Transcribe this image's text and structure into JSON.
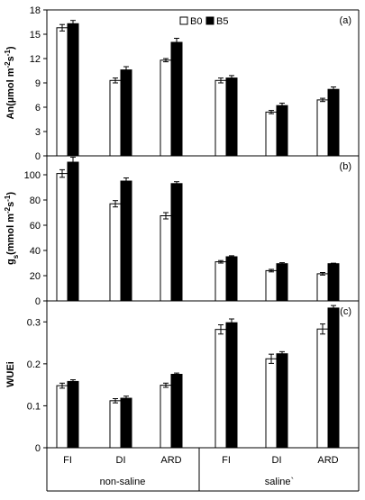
{
  "chart_data": [
    {
      "panel": "(a)",
      "type": "bar",
      "ylabel": "An(µmol m⁻²s⁻¹)",
      "ylim": [
        0,
        18
      ],
      "yticks": [
        "0",
        "3",
        "6",
        "9",
        "12",
        "15",
        "18"
      ],
      "categories": [
        "FI",
        "DI",
        "ARD",
        "FI",
        "DI",
        "ARD"
      ],
      "series": [
        {
          "name": "B0",
          "color": "#ffffff",
          "values": [
            15.8,
            9.3,
            11.8,
            9.3,
            5.4,
            6.9
          ],
          "errors": [
            0.4,
            0.3,
            0.2,
            0.3,
            0.2,
            0.2
          ]
        },
        {
          "name": "B5",
          "color": "#000000",
          "values": [
            16.3,
            10.6,
            14.0,
            9.6,
            6.2,
            8.2
          ],
          "errors": [
            0.4,
            0.4,
            0.5,
            0.3,
            0.3,
            0.3
          ]
        }
      ]
    },
    {
      "panel": "(b)",
      "type": "bar",
      "ylabel": "gs(mmol m⁻²s⁻¹)",
      "ylim": [
        0,
        115
      ],
      "yticks": [
        "0",
        "20",
        "40",
        "60",
        "80",
        "100"
      ],
      "categories": [
        "FI",
        "DI",
        "ARD",
        "FI",
        "DI",
        "ARD"
      ],
      "series": [
        {
          "name": "B0",
          "color": "#ffffff",
          "values": [
            101,
            77,
            67.5,
            31,
            24,
            21.5
          ],
          "errors": [
            3,
            2.5,
            2.5,
            1,
            1,
            1
          ]
        },
        {
          "name": "B5",
          "color": "#000000",
          "values": [
            110,
            95,
            93,
            35,
            29.5,
            29.5
          ],
          "errors": [
            4,
            2.5,
            1.5,
            0.8,
            0.8,
            0.4
          ]
        }
      ]
    },
    {
      "panel": "(c)",
      "type": "bar",
      "ylabel": "WUEi",
      "ylim": [
        0,
        0.35
      ],
      "yticks": [
        "0",
        "0.1",
        "0.2",
        "0.3"
      ],
      "categories": [
        "FI",
        "DI",
        "ARD",
        "FI",
        "DI",
        "ARD"
      ],
      "series": [
        {
          "name": "B0",
          "color": "#ffffff",
          "values": [
            0.148,
            0.112,
            0.149,
            0.282,
            0.212,
            0.283
          ],
          "errors": [
            0.006,
            0.005,
            0.005,
            0.011,
            0.011,
            0.012
          ]
        },
        {
          "name": "B5",
          "color": "#000000",
          "values": [
            0.158,
            0.118,
            0.175,
            0.298,
            0.224,
            0.333
          ],
          "errors": [
            0.004,
            0.005,
            0.003,
            0.009,
            0.005,
            0.006
          ]
        }
      ]
    }
  ],
  "legend": {
    "entries": [
      "B0",
      "B5"
    ],
    "placement": "top-center"
  },
  "groups": [
    "non-saline",
    "saline`"
  ]
}
